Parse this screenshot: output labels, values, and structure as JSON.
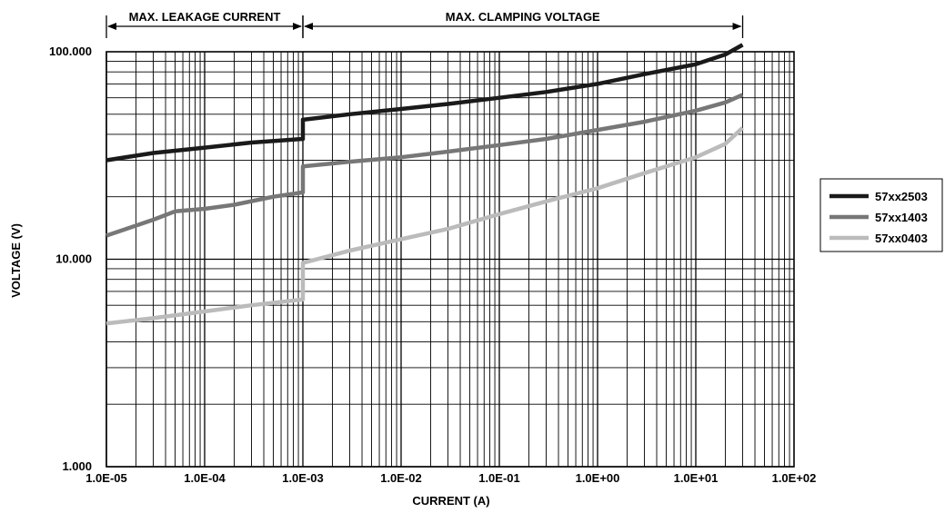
{
  "chart_data": {
    "type": "line",
    "title": "",
    "xlabel": "CURRENT (A)",
    "ylabel": "VOLTAGE (V)",
    "x_scale": "log",
    "y_scale": "log",
    "xlim": [
      1e-05,
      100
    ],
    "ylim": [
      1,
      100
    ],
    "x_ticks": [
      "1.0E-05",
      "1.0E-04",
      "1.0E-03",
      "1.0E-02",
      "1.0E-01",
      "1.0E+00",
      "1.0E+01",
      "1.0E+02"
    ],
    "y_ticks": [
      "1.000",
      "10.000",
      "100.000"
    ],
    "grid": true,
    "legend_position": "right",
    "regions": [
      {
        "label": "MAX. LEAKAGE CURRENT",
        "x_from": 1e-05,
        "x_to": 0.001
      },
      {
        "label": "MAX. CLAMPING VOLTAGE",
        "x_from": 0.001,
        "x_to": 30
      }
    ],
    "series": [
      {
        "name": "57xx2503",
        "color": "#1a1a1a",
        "points": [
          [
            1e-05,
            30
          ],
          [
            3e-05,
            32.5
          ],
          [
            0.0001,
            34.5
          ],
          [
            0.0003,
            36.5
          ],
          [
            0.001,
            38
          ],
          [
            0.001,
            47
          ],
          [
            0.003,
            50
          ],
          [
            0.01,
            53
          ],
          [
            0.03,
            56
          ],
          [
            0.1,
            60
          ],
          [
            0.3,
            64
          ],
          [
            1,
            70
          ],
          [
            3,
            78
          ],
          [
            10,
            87
          ],
          [
            20,
            97
          ],
          [
            30,
            108
          ]
        ]
      },
      {
        "name": "57xx1403",
        "color": "#777777",
        "points": [
          [
            1e-05,
            13
          ],
          [
            3e-05,
            15.5
          ],
          [
            5e-05,
            17
          ],
          [
            0.0001,
            17.5
          ],
          [
            0.0002,
            18.3
          ],
          [
            0.0005,
            20
          ],
          [
            0.001,
            21
          ],
          [
            0.001,
            28
          ],
          [
            0.003,
            29.5
          ],
          [
            0.01,
            31
          ],
          [
            0.03,
            33
          ],
          [
            0.1,
            35.5
          ],
          [
            0.3,
            38
          ],
          [
            1,
            42
          ],
          [
            3,
            46
          ],
          [
            10,
            52
          ],
          [
            20,
            57
          ],
          [
            30,
            62
          ]
        ]
      },
      {
        "name": "57xx0403",
        "color": "#bbbbbb",
        "points": [
          [
            1e-05,
            4.9
          ],
          [
            3e-05,
            5.2
          ],
          [
            0.0001,
            5.6
          ],
          [
            0.0003,
            6.0
          ],
          [
            0.001,
            6.4
          ],
          [
            0.001,
            9.6
          ],
          [
            0.003,
            11
          ],
          [
            0.01,
            12.5
          ],
          [
            0.03,
            14
          ],
          [
            0.1,
            16.5
          ],
          [
            0.3,
            19
          ],
          [
            1,
            22
          ],
          [
            3,
            26
          ],
          [
            10,
            31
          ],
          [
            20,
            36
          ],
          [
            30,
            43
          ]
        ]
      }
    ]
  }
}
